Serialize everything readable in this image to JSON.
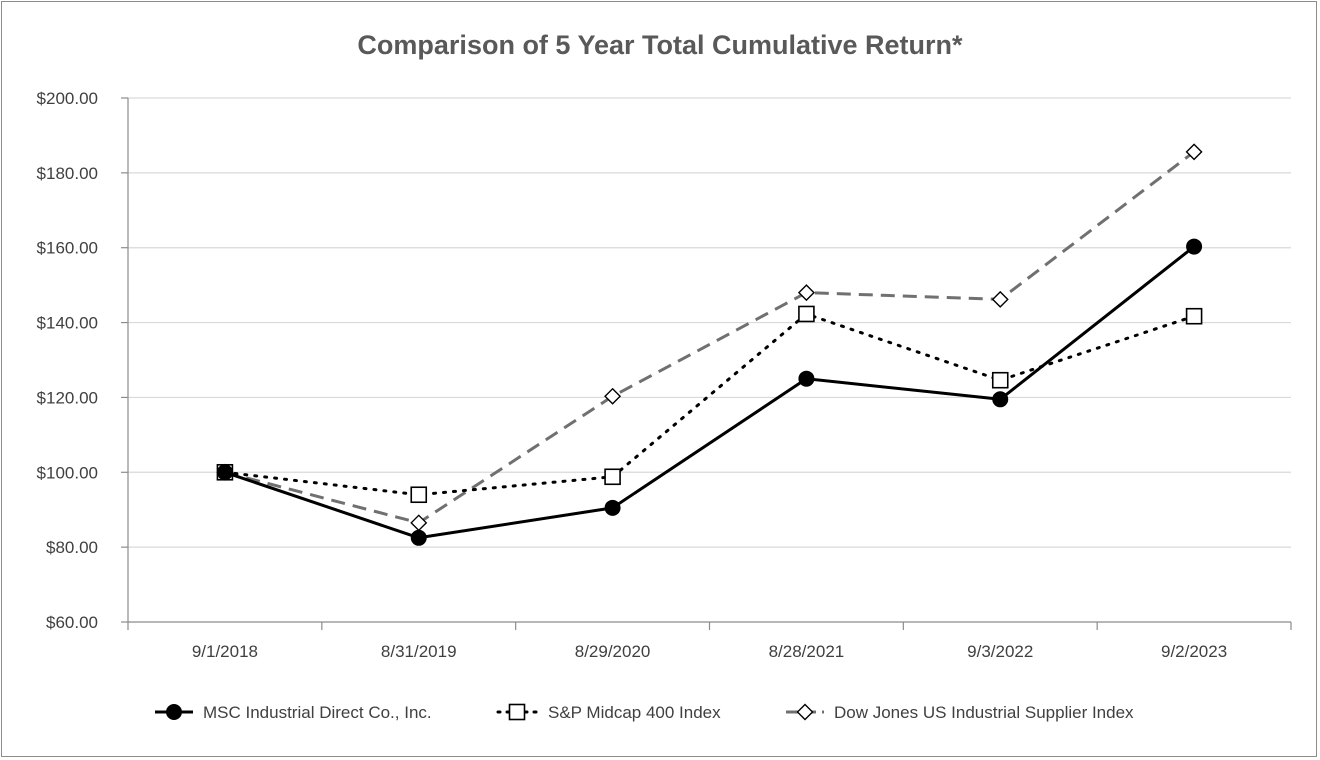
{
  "chart_data": {
    "type": "line",
    "title": "Comparison of 5 Year Total Cumulative Return*",
    "categories": [
      "9/1/2018",
      "8/31/2019",
      "8/29/2020",
      "8/28/2021",
      "9/3/2022",
      "9/2/2023"
    ],
    "ylim": [
      60,
      200
    ],
    "ytick_values": [
      60,
      80,
      100,
      120,
      140,
      160,
      180,
      200
    ],
    "ytick_labels": [
      "$60.00",
      "$80.00",
      "$100.00",
      "$120.00",
      "$140.00",
      "$160.00",
      "$180.00",
      "$200.00"
    ],
    "grid": true,
    "legend_position": "bottom",
    "series": [
      {
        "name": "MSC Industrial Direct Co., Inc.",
        "values": [
          100.0,
          82.5,
          90.5,
          125.0,
          119.5,
          160.3
        ],
        "color": "#000000",
        "line_style": "solid",
        "marker": "filled-circle"
      },
      {
        "name": "S&P Midcap 400 Index",
        "values": [
          100.0,
          94.0,
          98.8,
          142.3,
          124.6,
          141.7
        ],
        "color": "#000000",
        "line_style": "dotted",
        "marker": "open-square"
      },
      {
        "name": "Dow Jones US Industrial Supplier Index",
        "values": [
          100.0,
          86.5,
          120.3,
          148.0,
          146.2,
          185.6
        ],
        "color": "#707070",
        "line_style": "dashed",
        "marker": "open-diamond"
      }
    ]
  }
}
